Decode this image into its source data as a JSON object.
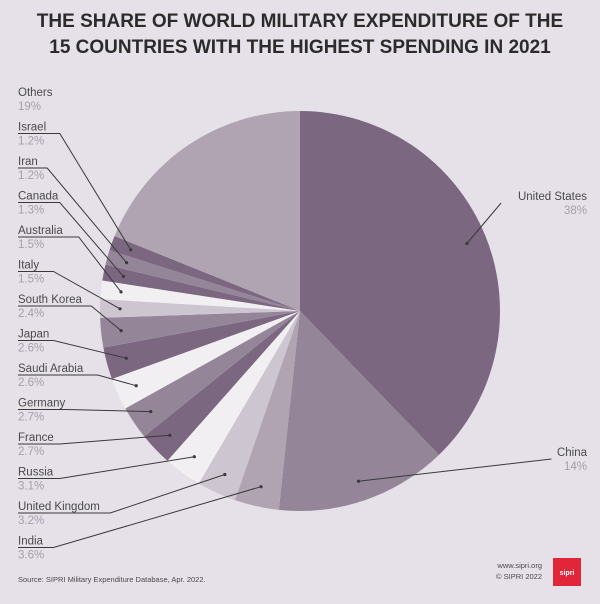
{
  "title_lines": [
    "THE SHARE OF WORLD MILITARY EXPENDITURE OF THE",
    "15 COUNTRIES WITH THE HIGHEST SPENDING IN 2021"
  ],
  "source": "Source: SIPRI Military Expenditure Database, Apr. 2022.",
  "site": "www.sipri.org",
  "copyright": "© SIPRI 2022",
  "logo_text": "sipri",
  "colors": {
    "background": "#e6e0e9",
    "logo": "#e1263a",
    "leader": "#3a3a3a"
  },
  "chart_data": {
    "type": "pie",
    "title": "THE SHARE OF WORLD MILITARY EXPENDITURE OF THE 15 COUNTRIES WITH THE HIGHEST SPENDING IN 2021",
    "unit": "%",
    "slices": [
      {
        "name": "United States",
        "value": 38,
        "label": "38%",
        "color": "#7b6780"
      },
      {
        "name": "China",
        "value": 14,
        "label": "14%",
        "color": "#958598"
      },
      {
        "name": "India",
        "value": 3.6,
        "label": "3.6%",
        "color": "#b0a4b3"
      },
      {
        "name": "United Kingdom",
        "value": 3.2,
        "label": "3.2%",
        "color": "#cdc5d0"
      },
      {
        "name": "Russia",
        "value": 3.1,
        "label": "3.1%",
        "color": "#f2eff3"
      },
      {
        "name": "France",
        "value": 2.7,
        "label": "2.7%",
        "color": "#7b6780"
      },
      {
        "name": "Germany",
        "value": 2.7,
        "label": "2.7%",
        "color": "#958598"
      },
      {
        "name": "Saudi Arabia",
        "value": 2.6,
        "label": "2.6%",
        "color": "#f2eff3"
      },
      {
        "name": "Japan",
        "value": 2.6,
        "label": "2.6%",
        "color": "#7b6780"
      },
      {
        "name": "South Korea",
        "value": 2.4,
        "label": "2.4%",
        "color": "#958598"
      },
      {
        "name": "Italy",
        "value": 1.5,
        "label": "1.5%",
        "color": "#cdc5d0"
      },
      {
        "name": "Australia",
        "value": 1.5,
        "label": "1.5%",
        "color": "#f2eff3"
      },
      {
        "name": "Canada",
        "value": 1.3,
        "label": "1.3%",
        "color": "#7b6780"
      },
      {
        "name": "Iran",
        "value": 1.2,
        "label": "1.2%",
        "color": "#958598"
      },
      {
        "name": "Israel",
        "value": 1.2,
        "label": "1.2%",
        "color": "#7b6780"
      },
      {
        "name": "Others",
        "value": 19,
        "label": "19%",
        "color": "#b0a4b3"
      }
    ]
  }
}
